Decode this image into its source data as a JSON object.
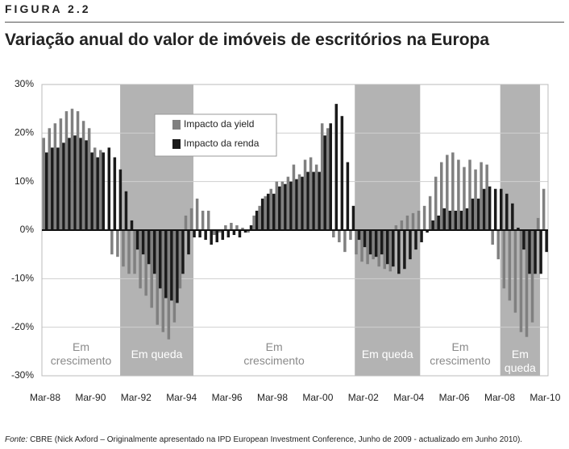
{
  "header": {
    "figure": "FIGURA 2.2"
  },
  "chart_data": {
    "type": "bar",
    "title": "Variação anual do valor de imóveis de escritórios na Europa",
    "categories": [
      "Mar-88",
      null,
      null,
      null,
      null,
      null,
      null,
      null,
      "Mar-90",
      null,
      null,
      null,
      null,
      null,
      null,
      null,
      "Mar-92",
      null,
      null,
      null,
      null,
      null,
      null,
      null,
      "Mar-94",
      null,
      null,
      null,
      null,
      null,
      null,
      null,
      "Mar-96",
      null,
      null,
      null,
      null,
      null,
      null,
      null,
      "Mar-98",
      null,
      null,
      null,
      null,
      null,
      null,
      null,
      "Mar-00",
      null,
      null,
      null,
      null,
      null,
      null,
      null,
      "Mar-02",
      null,
      null,
      null,
      null,
      null,
      null,
      null,
      "Mar-04",
      null,
      null,
      null,
      null,
      null,
      null,
      null,
      "Mar-06",
      null,
      null,
      null,
      null,
      null,
      null,
      null,
      "Mar-08",
      null,
      null,
      null,
      null,
      null,
      null,
      null,
      "Mar-10"
    ],
    "series": [
      {
        "name": "Impacto da yield",
        "color": "#808080",
        "values": [
          19,
          21,
          22,
          23,
          24.5,
          25,
          24.5,
          22.5,
          21,
          17,
          16.5,
          0,
          -5,
          -5.5,
          -7.5,
          -9,
          -9,
          -12,
          -13.5,
          -16,
          -19.5,
          -21,
          -22.5,
          -19,
          -12,
          3,
          4.5,
          6.5,
          4,
          4,
          -1,
          -0.5,
          1,
          1.5,
          1,
          0.5,
          -0.5,
          3,
          5,
          7,
          8.5,
          10,
          10,
          11,
          13.5,
          11.5,
          14.5,
          15,
          13.5,
          22,
          21,
          -1.5,
          -2.5,
          -4.5,
          -2,
          -5,
          -6.5,
          -7,
          -6,
          -7.5,
          -8,
          -8.5,
          1,
          2,
          3,
          3.5,
          4,
          5,
          7,
          11,
          14,
          15.5,
          16,
          14.5,
          13,
          14.5,
          12.5,
          14,
          13.5,
          -3,
          -6,
          -12,
          -14.5,
          -17,
          -21,
          -22,
          -19,
          2.5,
          8.5
        ]
      },
      {
        "name": "Impacto da renda",
        "color": "#1a1a1a",
        "values": [
          16,
          17,
          17,
          18,
          19,
          19.5,
          19,
          18.5,
          16,
          15,
          16,
          17,
          15,
          12.5,
          8,
          2,
          -4,
          -5,
          -7,
          -9,
          -12,
          -14,
          -14.5,
          -15,
          -9,
          -5,
          -1.5,
          -1.5,
          -2,
          -3,
          -2.5,
          -2,
          -1.5,
          -1,
          -1.5,
          -0.5,
          1,
          4,
          6.5,
          7.5,
          7.5,
          9,
          9.5,
          10,
          10.5,
          11,
          12,
          12,
          12,
          19.5,
          22,
          26,
          23.5,
          14,
          5,
          -2,
          -3.5,
          -5,
          -5.5,
          -5,
          -7,
          -7.5,
          -9,
          -8,
          -6,
          -4,
          -2.5,
          -0.5,
          2,
          3,
          4.5,
          4,
          4,
          4,
          4.5,
          6.5,
          6.5,
          8.5,
          9,
          8.5,
          8.5,
          7.5,
          5.5,
          0.5,
          -4,
          -9,
          -9,
          -9,
          -4.5
        ]
      }
    ],
    "ylim": [
      -30,
      30
    ],
    "yticks": [
      {
        "value": -30,
        "label": "-30%"
      },
      {
        "value": -20,
        "label": "-20%"
      },
      {
        "value": -10,
        "label": "-10%"
      },
      {
        "value": 0,
        "label": "0%"
      },
      {
        "value": 10,
        "label": "10%"
      },
      {
        "value": 20,
        "label": "20%"
      },
      {
        "value": 30,
        "label": "30%"
      }
    ],
    "grid": true,
    "phases": [
      {
        "label": "Em crescimento",
        "start": -0.57,
        "end": 13.2,
        "shaded": false
      },
      {
        "label": "Em queda",
        "start": 13.2,
        "end": 26.1,
        "shaded": true
      },
      {
        "label": "Em crescimento",
        "start": 26.1,
        "end": 54.5,
        "shaded": false
      },
      {
        "label": "Em queda",
        "start": 54.5,
        "end": 66,
        "shaded": true
      },
      {
        "label": "Em crescimento",
        "start": 66,
        "end": 80.1,
        "shaded": false
      },
      {
        "label": "Em queda",
        "start": 80.1,
        "end": 87.1,
        "shaded": true
      }
    ]
  },
  "source": {
    "label": "Fonte:",
    "text": "CBRE (Nick Axford – Originalmente apresentado na IPD European Investment Conference, Junho de 2009 - actualizado em Junho 2010)."
  }
}
